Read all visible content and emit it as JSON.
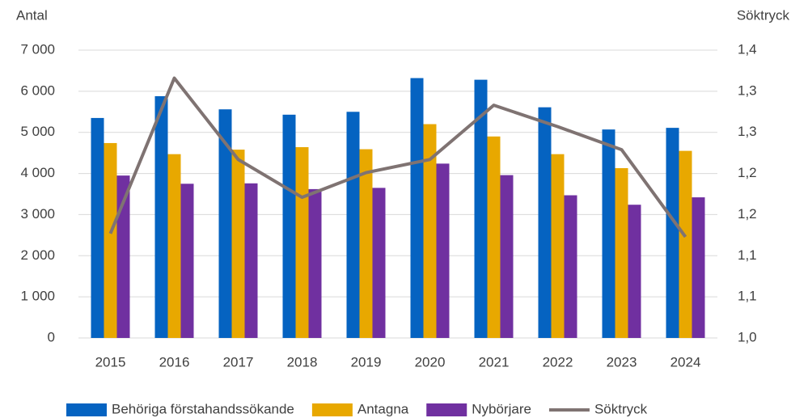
{
  "chart_data": {
    "type": "bar",
    "y_label": "Antal",
    "y2_label": "Söktryck",
    "categories": [
      "2015",
      "2016",
      "2017",
      "2018",
      "2019",
      "2020",
      "2021",
      "2022",
      "2023",
      "2024"
    ],
    "series": [
      {
        "name": "Behöriga förstahandssökande",
        "color": "#0563c1",
        "values": [
          5350,
          5880,
          5560,
          5430,
          5500,
          6320,
          6280,
          5610,
          5070,
          5110
        ]
      },
      {
        "name": "Antagna",
        "color": "#e8a800",
        "values": [
          4740,
          4470,
          4580,
          4640,
          4590,
          5200,
          4900,
          4470,
          4130,
          4550
        ]
      },
      {
        "name": "Nybörjare",
        "color": "#7030a0",
        "values": [
          3950,
          3750,
          3760,
          3620,
          3650,
          4240,
          3960,
          3470,
          3240,
          3420
        ]
      },
      {
        "name": "Söktryck",
        "type": "line",
        "axis": "y2",
        "color": "#7f7372",
        "values": [
          1.127,
          1.316,
          1.217,
          1.171,
          1.201,
          1.217,
          1.283,
          1.257,
          1.229,
          1.123
        ]
      }
    ],
    "ylim": [
      0,
      7000
    ],
    "yticks": [
      0,
      {
        "value": 1000,
        "label": "1 000"
      },
      {
        "value": 2000,
        "label": "2 000"
      },
      {
        "value": 3000,
        "label": "3 000"
      },
      {
        "value": 4000,
        "label": "4 000"
      },
      {
        "value": 5000,
        "label": "5 000"
      },
      {
        "value": 6000,
        "label": "6 000"
      },
      {
        "value": 7000,
        "label": "7 000"
      }
    ],
    "y2lim": [
      1.0,
      1.35
    ],
    "y2ticks": [
      {
        "value": 1.0,
        "label": "1,0"
      },
      {
        "value": 1.05,
        "label": "1,1"
      },
      {
        "value": 1.1,
        "label": "1,1"
      },
      {
        "value": 1.15,
        "label": "1,2"
      },
      {
        "value": 1.2,
        "label": "1,2"
      },
      {
        "value": 1.25,
        "label": "1,3"
      },
      {
        "value": 1.3,
        "label": "1,3"
      },
      {
        "value": 1.35,
        "label": "1,4"
      }
    ],
    "grid": true,
    "legend": "bottom"
  }
}
